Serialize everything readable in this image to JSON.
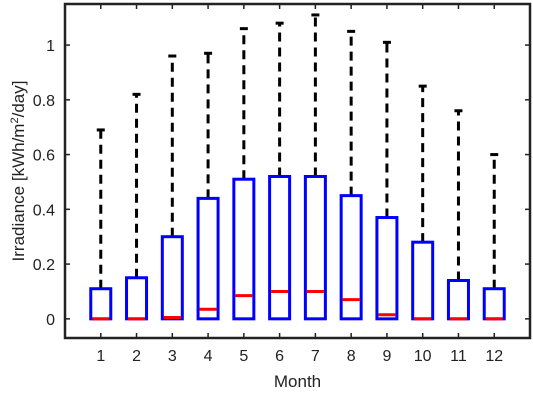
{
  "chart_data": {
    "type": "boxplot",
    "xlabel": "Month",
    "ylabel_prefix": "Irradiance [kWh/m",
    "ylabel_sup": "2",
    "ylabel_suffix": "/day]",
    "categories": [
      "1",
      "2",
      "3",
      "4",
      "5",
      "6",
      "7",
      "8",
      "9",
      "10",
      "11",
      "12"
    ],
    "ylim": [
      -0.07,
      1.15
    ],
    "yticks": [
      0,
      0.2,
      0.4,
      0.6,
      0.8,
      1
    ],
    "ytick_labels": [
      "0",
      "0.2",
      "0.4",
      "0.6",
      "0.8",
      "1"
    ],
    "grid": false,
    "box_color": "#0000ff",
    "median_color": "#ff0000",
    "whisker_color": "#000000",
    "boxes": [
      {
        "min": 0,
        "q1": 0,
        "median": 0,
        "q3": 0.11,
        "max": 0.69
      },
      {
        "min": 0,
        "q1": 0,
        "median": 0,
        "q3": 0.15,
        "max": 0.82
      },
      {
        "min": 0,
        "q1": 0,
        "median": 0.005,
        "q3": 0.3,
        "max": 0.96
      },
      {
        "min": 0,
        "q1": 0,
        "median": 0.035,
        "q3": 0.44,
        "max": 0.97
      },
      {
        "min": 0,
        "q1": 0,
        "median": 0.085,
        "q3": 0.51,
        "max": 1.06
      },
      {
        "min": 0,
        "q1": 0,
        "median": 0.1,
        "q3": 0.52,
        "max": 1.08
      },
      {
        "min": 0,
        "q1": 0,
        "median": 0.1,
        "q3": 0.52,
        "max": 1.11
      },
      {
        "min": 0,
        "q1": 0,
        "median": 0.07,
        "q3": 0.45,
        "max": 1.05
      },
      {
        "min": 0,
        "q1": 0,
        "median": 0.015,
        "q3": 0.37,
        "max": 1.01
      },
      {
        "min": 0,
        "q1": 0,
        "median": 0,
        "q3": 0.28,
        "max": 0.85
      },
      {
        "min": 0,
        "q1": 0,
        "median": 0,
        "q3": 0.14,
        "max": 0.76
      },
      {
        "min": 0,
        "q1": 0,
        "median": 0,
        "q3": 0.11,
        "max": 0.6
      }
    ]
  }
}
